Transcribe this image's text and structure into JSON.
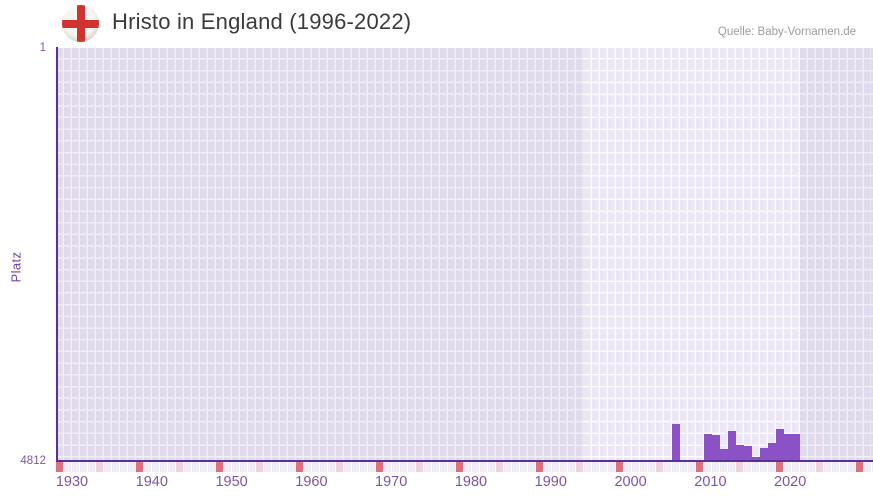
{
  "header": {
    "title": "Hristo in England (1996-2022)",
    "source": "Quelle: Baby-Vornamen.de",
    "flag_icon": "england-flag"
  },
  "chart_data": {
    "type": "bar",
    "title": "Hristo in England (1996-2022)",
    "ylabel": "Platz",
    "y_axis": {
      "min": 1,
      "max": 4812,
      "inverted": true,
      "tick_labels": [
        "1",
        "4812"
      ]
    },
    "x_tick_years": [
      1930,
      1940,
      1950,
      1960,
      1970,
      1980,
      1990,
      2000,
      2010,
      2020
    ],
    "highlight_period": {
      "start": 1996,
      "end": 2022
    },
    "bars": [
      {
        "year": 2007,
        "rank": 4390
      },
      {
        "year": 2011,
        "rank": 4510
      },
      {
        "year": 2012,
        "rank": 4525
      },
      {
        "year": 2013,
        "rank": 4685
      },
      {
        "year": 2014,
        "rank": 4475
      },
      {
        "year": 2015,
        "rank": 4640
      },
      {
        "year": 2016,
        "rank": 4650
      },
      {
        "year": 2017,
        "rank": 4780
      },
      {
        "year": 2018,
        "rank": 4675
      },
      {
        "year": 2019,
        "rank": 4610
      },
      {
        "year": 2020,
        "rank": 4445
      },
      {
        "year": 2021,
        "rank": 4510
      },
      {
        "year": 2022,
        "rank": 4505
      }
    ],
    "timeline_strip": {
      "red_every_years": 10,
      "pink_offset_years": 5
    },
    "legend": "none",
    "grid": "checkered",
    "colors": {
      "bar": "#8a52c4",
      "axis": "#5b3198",
      "tick_text": "#7e55ab",
      "axis_label_text": "#6e43a5",
      "title_text": "#3b3b3b",
      "source_text": "#9c9c9c",
      "grid_cell_dark": "#e0dbec",
      "grid_gap_dark": "#efedf5",
      "grid_cell_light": "#ebe7f5",
      "grid_gap_light": "#fbfafd",
      "strip_red": "#de7080",
      "strip_pink": "#f1d3e0",
      "strip_neutral": "#f0edf7",
      "flag_cross_red": "#d0322f",
      "flag_background": "#f7f5f1"
    }
  }
}
